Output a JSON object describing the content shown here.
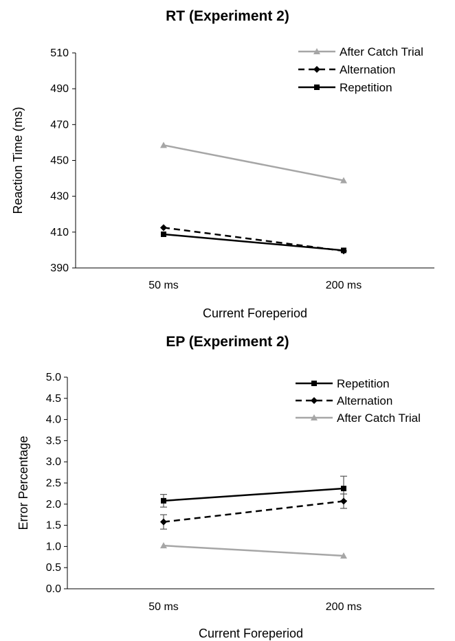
{
  "chart_data": [
    {
      "type": "line",
      "title": "RT (Experiment 2)",
      "xlabel": "Current Foreperiod",
      "ylabel": "Reaction Time (ms)",
      "categories": [
        "50 ms",
        "200 ms"
      ],
      "ylim": [
        390,
        510
      ],
      "yticks": [
        "390",
        "410",
        "430",
        "450",
        "470",
        "490",
        "510"
      ],
      "grid": false,
      "legend_position": "top-right",
      "series": [
        {
          "name": "After Catch Trial",
          "values": [
            458.5,
            438.8
          ],
          "color": "#a6a6a6",
          "dash": "solid",
          "marker": "triangle",
          "error": [
            0,
            0
          ]
        },
        {
          "name": "Alternation",
          "values": [
            412.5,
            399.5
          ],
          "color": "#000000",
          "dash": "dashed",
          "marker": "diamond",
          "error": [
            0,
            0
          ]
        },
        {
          "name": "Repetition",
          "values": [
            408.8,
            399.8
          ],
          "color": "#000000",
          "dash": "solid",
          "marker": "square",
          "error": [
            0,
            0
          ]
        }
      ]
    },
    {
      "type": "line",
      "title": "EP (Experiment 2)",
      "xlabel": "Current Foreperiod",
      "ylabel": "Error Percentage",
      "categories": [
        "50 ms",
        "200 ms"
      ],
      "ylim": [
        0,
        5
      ],
      "yticks": [
        "0.0",
        "0.5",
        "1.0",
        "1.5",
        "2.0",
        "2.5",
        "3.0",
        "3.5",
        "4.0",
        "4.5",
        "5.0"
      ],
      "grid": false,
      "legend_position": "top-right",
      "series": [
        {
          "name": "Repetition",
          "values": [
            2.08,
            2.37
          ],
          "color": "#000000",
          "dash": "solid",
          "marker": "square",
          "error": [
            0.15,
            0.29
          ]
        },
        {
          "name": "Alternation",
          "values": [
            1.58,
            2.07
          ],
          "color": "#000000",
          "dash": "dashed",
          "marker": "diamond",
          "error": [
            0.17,
            0.17
          ]
        },
        {
          "name": "After Catch Trial",
          "values": [
            1.02,
            0.78
          ],
          "color": "#a6a6a6",
          "dash": "solid",
          "marker": "triangle",
          "error": [
            0,
            0
          ]
        }
      ]
    }
  ]
}
